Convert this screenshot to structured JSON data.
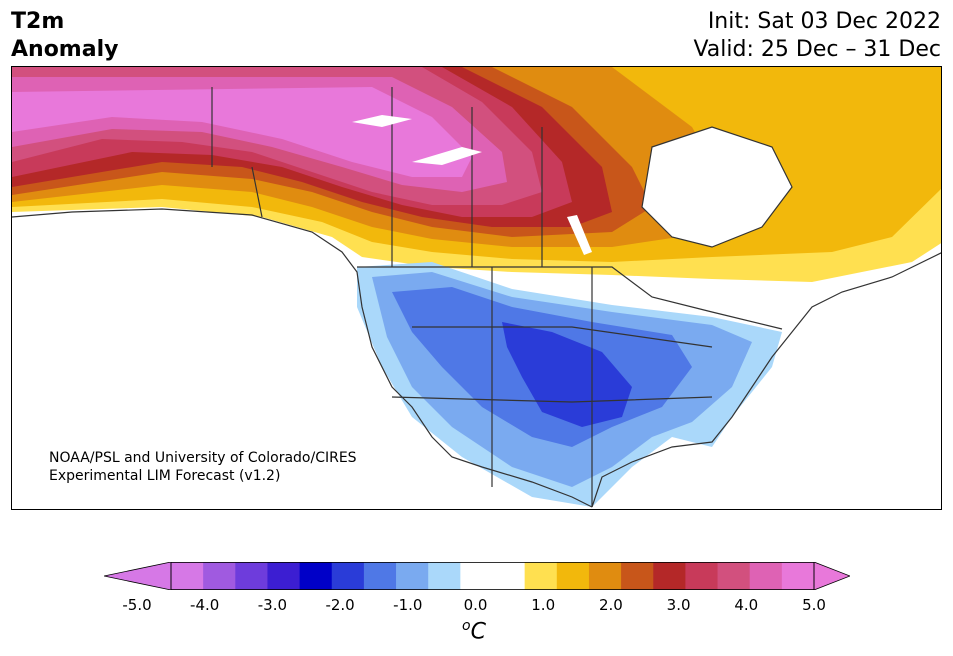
{
  "header": {
    "title_line1": "T2m",
    "title_line2": "Anomaly",
    "init": "Init: Sat 03 Dec 2022",
    "valid": "Valid: 25 Dec – 31 Dec"
  },
  "credit": {
    "line1": "NOAA/PSL and University of Colorado/CIRES",
    "line2": "Experimental LIM Forecast (v1.2)"
  },
  "colorbar": {
    "unit_sup": "o",
    "unit_main": "C",
    "colors": [
      "#d678e6",
      "#a05ae0",
      "#6e3cdc",
      "#3c1ed2",
      "#0000c8",
      "#2a3cd8",
      "#4f78e6",
      "#7aaaf0",
      "#aad8fa",
      "#ffffff",
      "#ffffff",
      "#ffe050",
      "#f2b80c",
      "#e08c10",
      "#c8561a",
      "#b42828",
      "#c83a5a",
      "#d2507e",
      "#de62b4",
      "#e878da"
    ],
    "tick_labels": [
      "-5.0",
      "-4.0",
      "-3.0",
      "-2.0",
      "-1.0",
      "0.0",
      "1.0",
      "2.0",
      "3.0",
      "4.0",
      "5.0"
    ]
  }
}
